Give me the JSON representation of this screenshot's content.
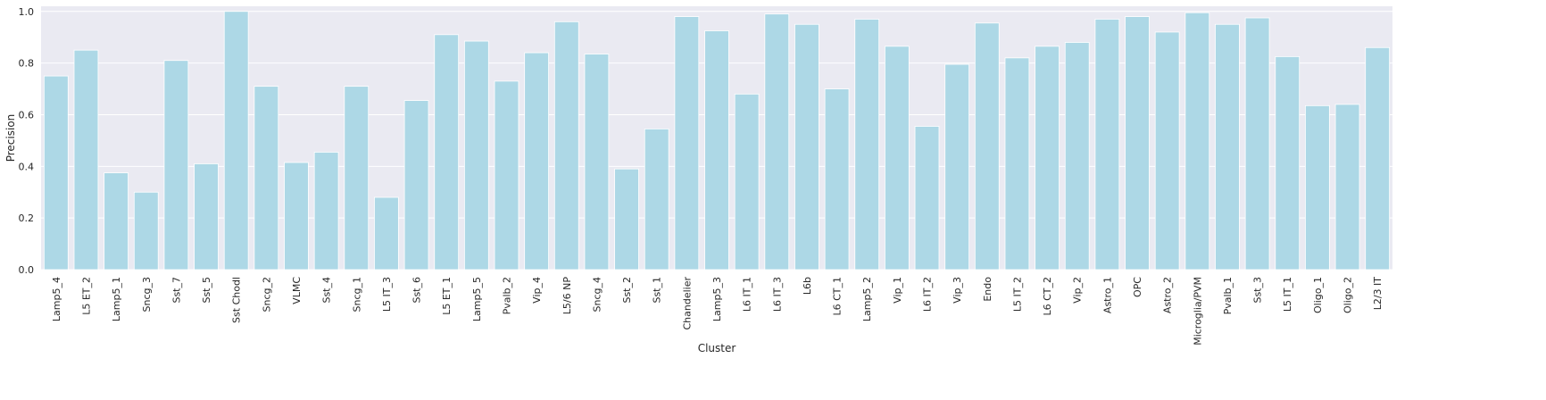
{
  "chart_data": {
    "type": "bar",
    "title": "",
    "xlabel": "Cluster",
    "ylabel": "Precision",
    "ylim": [
      0,
      1.02
    ],
    "yticks": [
      0.0,
      0.2,
      0.4,
      0.6,
      0.8,
      1.0
    ],
    "ytick_labels": [
      "0.0",
      "0.2",
      "0.4",
      "0.6",
      "0.8",
      "1.0"
    ],
    "grid": true,
    "bar_color": "#add8e6",
    "background_color": "#eaeaf2",
    "categories": [
      "Lamp5_4",
      "L5 ET_2",
      "Lamp5_1",
      "Sncg_3",
      "Sst_7",
      "Sst_5",
      "Sst Chodl",
      "Sncg_2",
      "VLMC",
      "Sst_4",
      "Sncg_1",
      "L5 IT_3",
      "Sst_6",
      "L5 ET_1",
      "Lamp5_5",
      "Pvalb_2",
      "Vip_4",
      "L5/6 NP",
      "Sncg_4",
      "Sst_2",
      "Sst_1",
      "Chandelier",
      "Lamp5_3",
      "L6 IT_1",
      "L6 IT_3",
      "L6b",
      "L6 CT_1",
      "Lamp5_2",
      "Vip_1",
      "L6 IT_2",
      "Vip_3",
      "Endo",
      "L5 IT_2",
      "L6 CT_2",
      "Vip_2",
      "Astro_1",
      "OPC",
      "Astro_2",
      "Microglia/PVM",
      "Pvalb_1",
      "Sst_3",
      "L5 IT_1",
      "Oligo_1",
      "Oligo_2",
      "L2/3 IT"
    ],
    "values": [
      0.75,
      0.85,
      0.375,
      0.3,
      0.81,
      0.41,
      1.0,
      0.71,
      0.415,
      0.455,
      0.71,
      0.28,
      0.655,
      0.91,
      0.885,
      0.73,
      0.84,
      0.96,
      0.835,
      0.39,
      0.545,
      0.98,
      0.925,
      0.68,
      0.99,
      0.95,
      0.7,
      0.97,
      0.865,
      0.555,
      0.795,
      0.955,
      0.82,
      0.865,
      0.88,
      0.97,
      0.98,
      0.92,
      0.995,
      0.95,
      0.975,
      0.825,
      0.635,
      0.64,
      0.86
    ]
  }
}
